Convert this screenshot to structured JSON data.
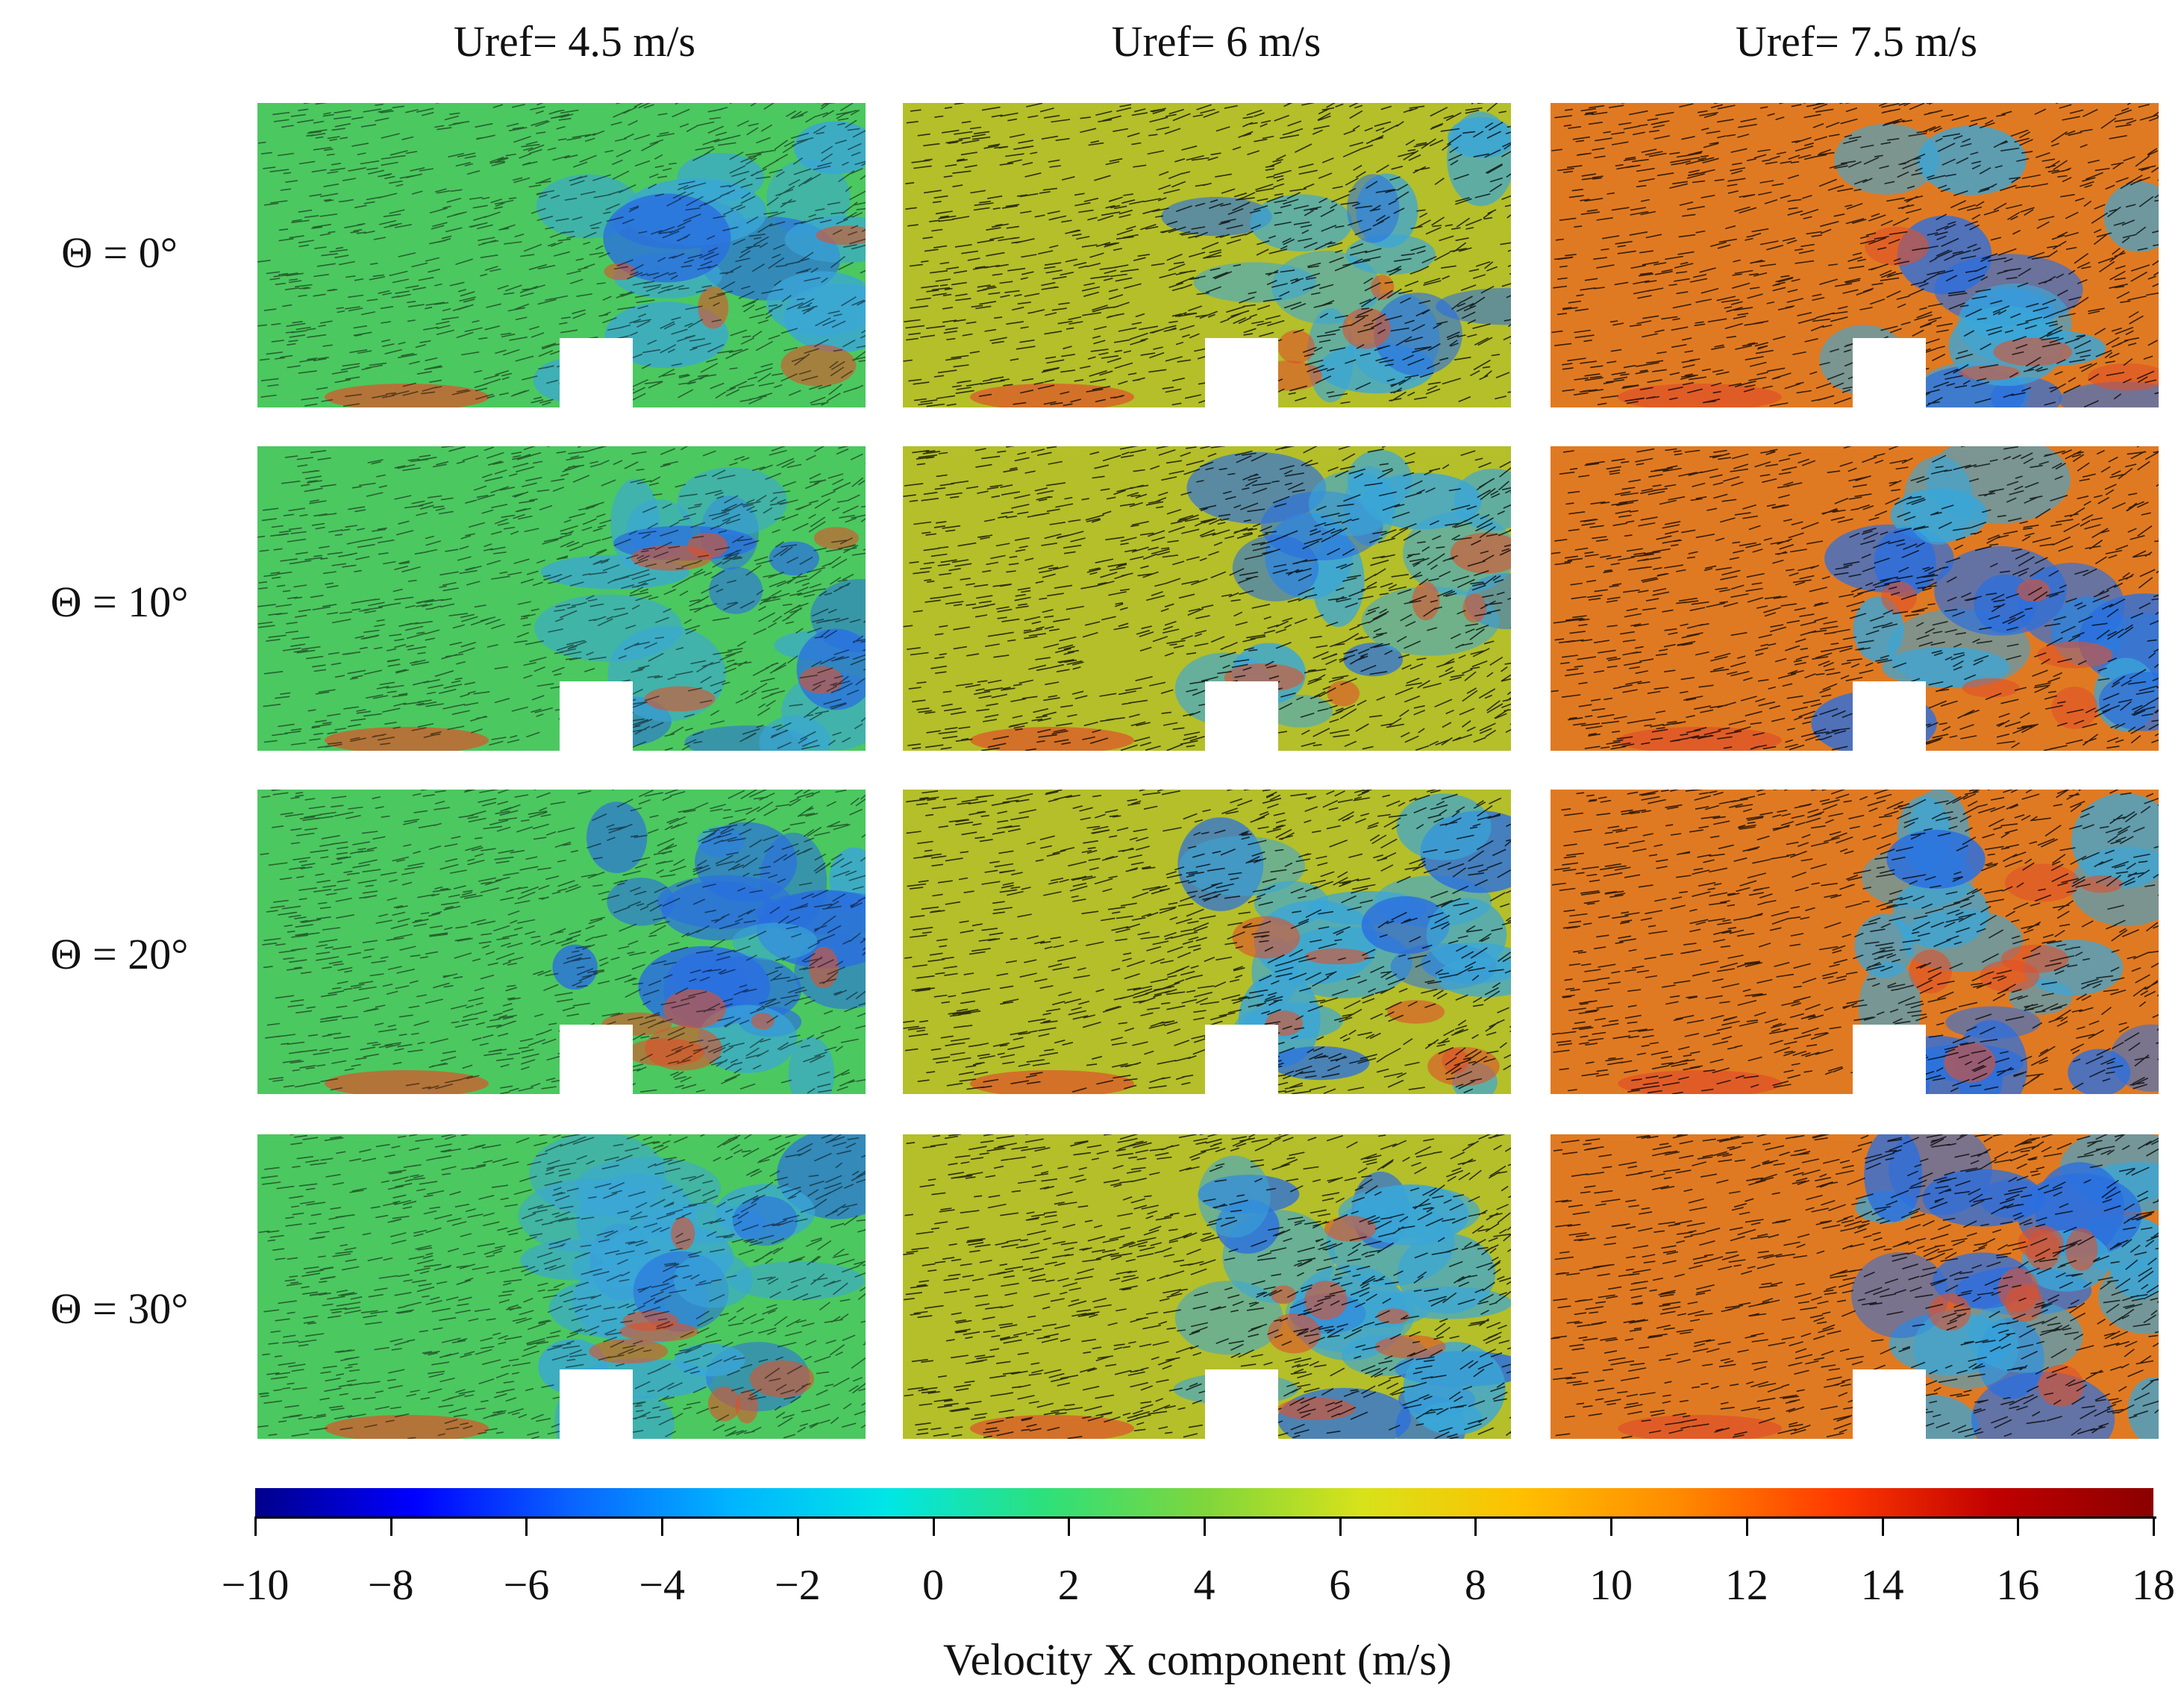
{
  "columns": [
    "Uref= 4.5 m/s",
    "Uref= 6 m/s",
    "Uref= 7.5 m/s"
  ],
  "rows": [
    "Θ = 0°",
    "Θ = 10°",
    "Θ = 20°",
    "Θ = 30°"
  ],
  "colorbar": {
    "title": "Velocity X component (m/s)",
    "range": [
      -10,
      18
    ],
    "ticks": [
      "−10",
      "−8",
      "−6",
      "−4",
      "−2",
      "0",
      "2",
      "4",
      "6",
      "8",
      "10",
      "12",
      "14",
      "16",
      "18"
    ],
    "colors": [
      "#00008b",
      "#0000ff",
      "#0a64ff",
      "#00b4ff",
      "#00e6e6",
      "#2ee07a",
      "#7fd63c",
      "#d8e21a",
      "#ffc000",
      "#ff8a00",
      "#ff3a00",
      "#c00000",
      "#8b0000"
    ]
  },
  "panel_fills": {
    "u45": "#4cc860",
    "u6": "#b4bf2a",
    "u75": "#e07a22",
    "wake": "#3aa6d8",
    "jet": "#e0502a"
  }
}
